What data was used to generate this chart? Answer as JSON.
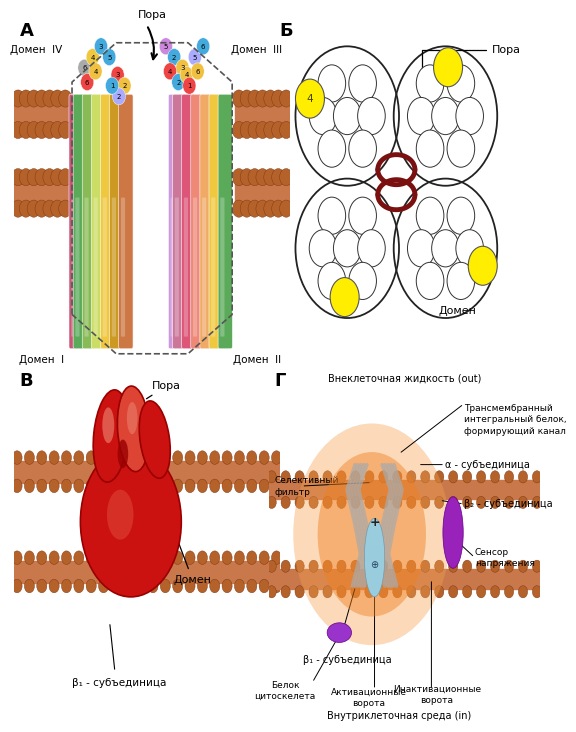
{
  "bg_color": "#ffffff",
  "membrane_color": "#c8784a",
  "membrane_head_color": "#b5612a",
  "membrane_tail_color": "#d4956a",
  "panel_A": {
    "label": "А",
    "pore_label": "Пора",
    "domain_labels": [
      "Домен IV",
      "Домен  III",
      "Домен  I",
      "Домен  II"
    ],
    "helix_colors_24": [
      "#5aaa5a",
      "#88cc66",
      "#aad466",
      "#f0c840",
      "#dd8833",
      "#cc7799",
      "#cc5577",
      "#6688ee",
      "#88aaee",
      "#aaddee",
      "#cc99dd",
      "#7755bb",
      "#bb66aa",
      "#ee8877",
      "#ee9955",
      "#f0c840",
      "#cc8833",
      "#5aaa5a",
      "#88cc66",
      "#6688ee",
      "#88aaee",
      "#dd8833",
      "#cc7799",
      "#7755bb"
    ],
    "sphere_colors": [
      "#44aadd",
      "#f0c040",
      "#ee4444",
      "#aaaaff",
      "#44aadd",
      "#f0c040",
      "#ee4444",
      "#44aadd"
    ],
    "dashed_box_color": "#555555"
  },
  "panel_B": {
    "label": "Б",
    "pore_label": "Пора",
    "domain_label": "Домен",
    "yellow_color": "#ffee00",
    "circle_stroke": "#333333",
    "connector_color": "#7a1010",
    "big_circle_r": 0.195,
    "small_circle_r": 0.052,
    "domain_sep": 0.185
  },
  "panel_C": {
    "label": "В",
    "pore_label": "Пора",
    "domain_label": "Домен",
    "beta1_label": "β₁ - субъединица",
    "pore_dark": "#990000",
    "pore_mid": "#cc1111",
    "pore_light": "#dd4433",
    "pore_highlight": "#e87766"
  },
  "panel_D": {
    "label": "Г",
    "extracell": "Внеклеточная жидкость (out)",
    "transmembrane": "Трансмембранный\nинтегральный белок,\nформирующий канал",
    "selective": "Селективный\nфильтр",
    "alpha": "α - субъединица",
    "beta2": "β₂ - субъединица",
    "beta1": "β₁ - субъединица",
    "cytoskel": "Белок\nцитоскелета",
    "activation": "Активационные\nворота",
    "inactivation": "Инактивационные\nворота",
    "voltage": "Сенсор\nнапряжения",
    "intracell": "Внутриклеточная среда (in)",
    "orange_glow": "#f08020",
    "orange_outer": "#f5a050",
    "gate_color": "#999999",
    "blue_channel": "#99ccdd",
    "voltage_color": "#9922bb",
    "cytoskel_color": "#9933cc"
  }
}
